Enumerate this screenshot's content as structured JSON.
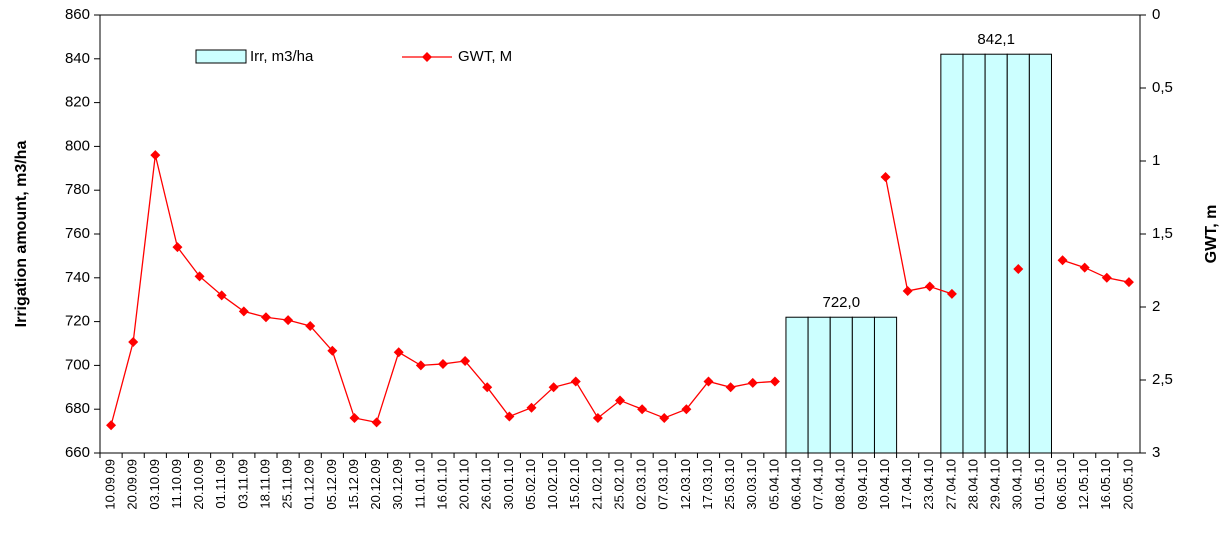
{
  "chart_data": {
    "type": "bar_line",
    "categories": [
      "10.09.09",
      "20.09.09",
      "03.10.09",
      "11.10.09",
      "20.10.09",
      "01.11.09",
      "03.11.09",
      "18.11.09",
      "25.11.09",
      "01.12.09",
      "05.12.09",
      "15.12.09",
      "20.12.09",
      "30.12.09",
      "11.01.10",
      "16.01.10",
      "20.01.10",
      "26.01.10",
      "30.01.10",
      "05.02.10",
      "10.02.10",
      "15.02.10",
      "21.02.10",
      "25.02.10",
      "02.03.10",
      "07.03.10",
      "12.03.10",
      "17.03.10",
      "25.03.10",
      "30.03.10",
      "05.04.10",
      "06.04.10",
      "07.04.10",
      "08.04.10",
      "09.04.10",
      "10.04.10",
      "17.04.10",
      "23.04.10",
      "27.04.10",
      "28.04.10",
      "29.04.10",
      "30.04.10",
      "01.05.10",
      "06.05.10",
      "12.05.10",
      "16.05.10",
      "20.05.10"
    ],
    "series": [
      {
        "name": "Irr, m3/ha",
        "type": "bar",
        "color": "#ccffff",
        "values": [
          null,
          null,
          null,
          null,
          null,
          null,
          null,
          null,
          null,
          null,
          null,
          null,
          null,
          null,
          null,
          null,
          null,
          null,
          null,
          null,
          null,
          null,
          null,
          null,
          null,
          null,
          null,
          null,
          null,
          null,
          null,
          722.0,
          722.0,
          722.0,
          722.0,
          722.0,
          null,
          null,
          842.1,
          842.1,
          842.1,
          842.1,
          842.1,
          null,
          null,
          null,
          null
        ],
        "value_labels": [
          null,
          null,
          null,
          null,
          null,
          null,
          null,
          null,
          null,
          null,
          null,
          null,
          null,
          null,
          null,
          null,
          null,
          null,
          null,
          null,
          null,
          null,
          null,
          null,
          null,
          null,
          null,
          null,
          null,
          null,
          null,
          null,
          null,
          "722,0",
          null,
          null,
          null,
          null,
          null,
          null,
          "842,1",
          null,
          null,
          null,
          null,
          null,
          null
        ]
      },
      {
        "name": "GWT, M",
        "type": "line",
        "axis": "y2",
        "color": "#ff0000",
        "values": [
          2.81,
          2.24,
          0.96,
          1.59,
          1.79,
          1.92,
          2.03,
          2.07,
          2.09,
          2.13,
          2.3,
          2.76,
          2.79,
          2.31,
          2.4,
          2.39,
          2.37,
          2.55,
          2.75,
          2.69,
          2.55,
          2.51,
          2.76,
          2.64,
          2.7,
          2.76,
          2.7,
          2.51,
          2.55,
          2.52,
          2.51,
          null,
          null,
          null,
          null,
          1.11,
          1.89,
          1.86,
          1.91,
          null,
          null,
          1.74,
          null,
          1.68,
          1.73,
          1.8,
          1.83
        ]
      }
    ],
    "y_label": "Irrigation amount, m3/ha",
    "y2_label": "GWT, m",
    "ylim": [
      660,
      860
    ],
    "yticks": [
      660,
      680,
      700,
      720,
      740,
      760,
      780,
      800,
      820,
      840,
      860
    ],
    "y2lim": [
      3,
      0
    ],
    "y2ticks": [
      0,
      {
        "value": 0.5,
        "label": "0,5"
      },
      1,
      {
        "value": 1.5,
        "label": "1,5"
      },
      2,
      {
        "value": 2.5,
        "label": "2,5"
      },
      3
    ],
    "legend": "top-left"
  }
}
